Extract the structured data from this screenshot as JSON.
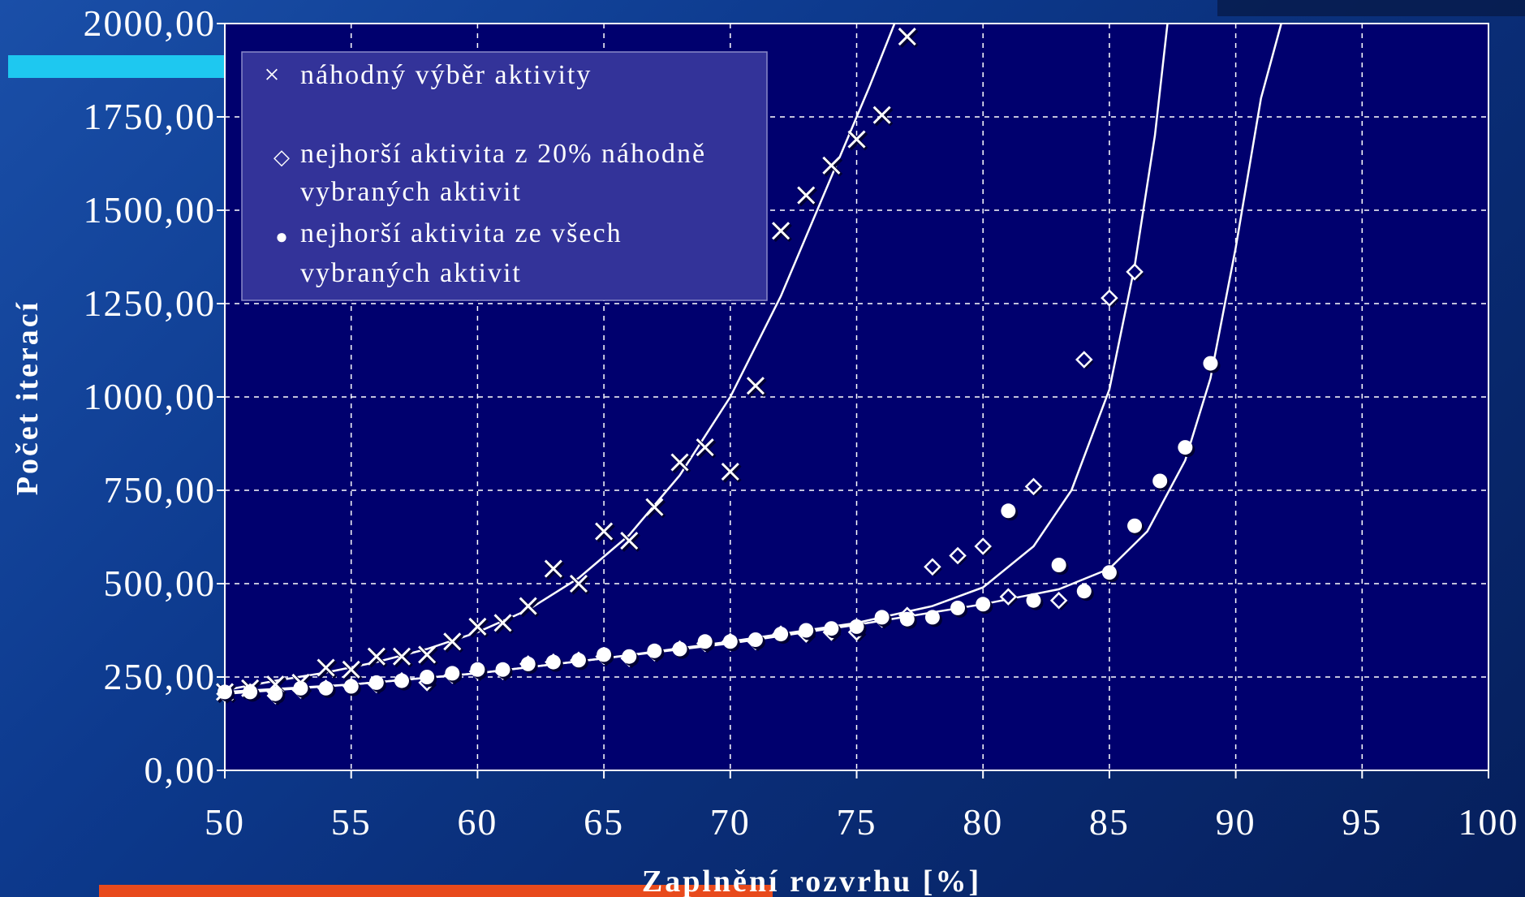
{
  "colors": {
    "plot_bg": "#00006e",
    "legend_bg": "#333399",
    "grid": "#ffffff",
    "marker": "#ffffff",
    "accent_cyan": "#1ec8f0",
    "accent_orange": "#e84a1c"
  },
  "chart_data": {
    "type": "scatter",
    "xlabel": "Zaplnění rozvrhu [%]",
    "ylabel": "Počet iterací",
    "xlim": [
      50,
      100
    ],
    "ylim": [
      0,
      2000
    ],
    "x_ticks": [
      "50",
      "55",
      "60",
      "65",
      "70",
      "75",
      "80",
      "85",
      "90",
      "95",
      "100"
    ],
    "y_ticks": [
      "0,00",
      "250,00",
      "500,00",
      "750,00",
      "1000,00",
      "1250,00",
      "1500,00",
      "1750,00",
      "2000,00"
    ],
    "grid": true,
    "legend_position": "top-left",
    "series": [
      {
        "name": "náhodný výběr aktivity",
        "marker": "x",
        "points": [
          [
            50,
            210
          ],
          [
            51,
            220
          ],
          [
            52,
            230
          ],
          [
            53,
            235
          ],
          [
            54,
            275
          ],
          [
            55,
            270
          ],
          [
            56,
            305
          ],
          [
            57,
            305
          ],
          [
            58,
            310
          ],
          [
            59,
            345
          ],
          [
            60,
            385
          ],
          [
            61,
            395
          ],
          [
            62,
            440
          ],
          [
            63,
            540
          ],
          [
            64,
            500
          ],
          [
            65,
            640
          ],
          [
            66,
            615
          ],
          [
            67,
            705
          ],
          [
            68,
            825
          ],
          [
            69,
            865
          ],
          [
            70,
            800
          ],
          [
            71,
            1030
          ],
          [
            72,
            1445
          ],
          [
            73,
            1540
          ],
          [
            74,
            1620
          ],
          [
            75,
            1690
          ],
          [
            76,
            1755
          ],
          [
            77,
            1965
          ]
        ],
        "trend": [
          [
            50,
            215
          ],
          [
            52,
            240
          ],
          [
            54,
            262
          ],
          [
            56,
            290
          ],
          [
            58,
            325
          ],
          [
            60,
            370
          ],
          [
            62,
            430
          ],
          [
            64,
            515
          ],
          [
            66,
            630
          ],
          [
            68,
            790
          ],
          [
            70,
            1000
          ],
          [
            72,
            1270
          ],
          [
            74,
            1590
          ],
          [
            75.5,
            1830
          ],
          [
            76.5,
            2000
          ]
        ]
      },
      {
        "name": "nejhorší aktivita z 20% náhodně vybraných aktivit",
        "marker": "diamond",
        "points": [
          [
            50,
            205
          ],
          [
            51,
            210
          ],
          [
            52,
            200
          ],
          [
            53,
            215
          ],
          [
            54,
            220
          ],
          [
            55,
            225
          ],
          [
            56,
            230
          ],
          [
            57,
            240
          ],
          [
            58,
            235
          ],
          [
            59,
            255
          ],
          [
            60,
            265
          ],
          [
            61,
            265
          ],
          [
            62,
            285
          ],
          [
            63,
            290
          ],
          [
            64,
            295
          ],
          [
            65,
            305
          ],
          [
            66,
            300
          ],
          [
            67,
            315
          ],
          [
            68,
            325
          ],
          [
            69,
            340
          ],
          [
            70,
            345
          ],
          [
            71,
            345
          ],
          [
            72,
            365
          ],
          [
            73,
            365
          ],
          [
            74,
            370
          ],
          [
            75,
            370
          ],
          [
            76,
            405
          ],
          [
            77,
            415
          ],
          [
            78,
            545
          ],
          [
            79,
            575
          ],
          [
            80,
            600
          ],
          [
            81,
            465
          ],
          [
            82,
            760
          ],
          [
            83,
            455
          ],
          [
            84,
            1100
          ],
          [
            85,
            1265
          ],
          [
            86,
            1335
          ]
        ],
        "trend": [
          [
            50,
            210
          ],
          [
            55,
            230
          ],
          [
            60,
            260
          ],
          [
            65,
            300
          ],
          [
            70,
            345
          ],
          [
            75,
            395
          ],
          [
            78,
            440
          ],
          [
            80,
            490
          ],
          [
            82,
            600
          ],
          [
            83.5,
            750
          ],
          [
            85,
            1020
          ],
          [
            86,
            1350
          ],
          [
            86.8,
            1700
          ],
          [
            87.3,
            2000
          ]
        ]
      },
      {
        "name": "nejhorší aktivita ze všech vybraných aktivit",
        "marker": "circle",
        "points": [
          [
            50,
            210
          ],
          [
            51,
            210
          ],
          [
            52,
            205
          ],
          [
            53,
            220
          ],
          [
            54,
            220
          ],
          [
            55,
            225
          ],
          [
            56,
            235
          ],
          [
            57,
            240
          ],
          [
            58,
            250
          ],
          [
            59,
            260
          ],
          [
            60,
            270
          ],
          [
            61,
            270
          ],
          [
            62,
            285
          ],
          [
            63,
            290
          ],
          [
            64,
            295
          ],
          [
            65,
            310
          ],
          [
            66,
            305
          ],
          [
            67,
            320
          ],
          [
            68,
            325
          ],
          [
            69,
            345
          ],
          [
            70,
            345
          ],
          [
            71,
            350
          ],
          [
            72,
            365
          ],
          [
            73,
            375
          ],
          [
            74,
            380
          ],
          [
            75,
            385
          ],
          [
            76,
            410
          ],
          [
            77,
            405
          ],
          [
            78,
            410
          ],
          [
            79,
            435
          ],
          [
            80,
            445
          ],
          [
            81,
            695
          ],
          [
            82,
            455
          ],
          [
            83,
            550
          ],
          [
            84,
            480
          ],
          [
            85,
            530
          ],
          [
            86,
            655
          ],
          [
            87,
            775
          ],
          [
            88,
            865
          ],
          [
            89,
            1090
          ]
        ],
        "trend": [
          [
            50,
            205
          ],
          [
            55,
            230
          ],
          [
            60,
            260
          ],
          [
            65,
            300
          ],
          [
            70,
            340
          ],
          [
            75,
            390
          ],
          [
            80,
            445
          ],
          [
            83,
            485
          ],
          [
            85,
            540
          ],
          [
            86.5,
            640
          ],
          [
            88,
            830
          ],
          [
            89,
            1050
          ],
          [
            90,
            1400
          ],
          [
            91,
            1800
          ],
          [
            91.8,
            2000
          ]
        ]
      }
    ]
  },
  "legend": {
    "item1": "náhodný výběr aktivity",
    "item2_line1": "nejhorší aktivita z 20% náhodně",
    "item2_line2": "vybraných aktivit",
    "item3_line1": "nejhorší aktivita ze všech",
    "item3_line2": "vybraných aktivit",
    "marker1": "×",
    "marker2": "◇",
    "marker3": "●"
  }
}
